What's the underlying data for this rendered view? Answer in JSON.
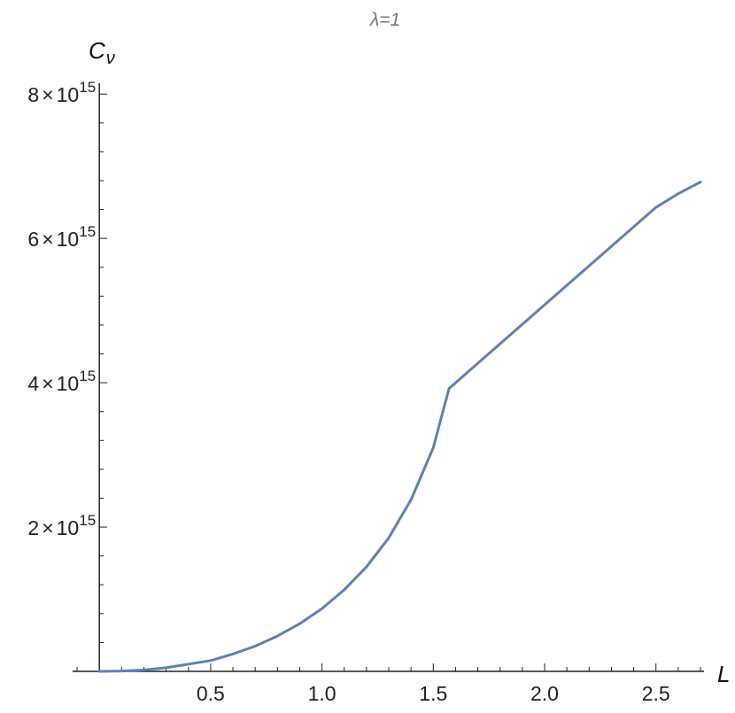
{
  "chart_data": {
    "type": "line",
    "title": "λ=1",
    "xlabel": "L",
    "ylabel": "Cv",
    "ylabel_main": "C",
    "ylabel_sub": "ν",
    "xlim": [
      -0.12,
      2.7
    ],
    "ylim": [
      0,
      8150000000000000.0
    ],
    "x_ticks": [
      {
        "value": 0.5,
        "label": "0.5"
      },
      {
        "value": 1.0,
        "label": "1.0"
      },
      {
        "value": 1.5,
        "label": "1.5"
      },
      {
        "value": 2.0,
        "label": "2.0"
      },
      {
        "value": 2.5,
        "label": "2.5"
      }
    ],
    "y_ticks": [
      {
        "value": 2000000000000000.0,
        "mantissa": "2",
        "times": "×",
        "base": "10",
        "exp": "15"
      },
      {
        "value": 4000000000000000.0,
        "mantissa": "4",
        "times": "×",
        "base": "10",
        "exp": "15"
      },
      {
        "value": 6000000000000000.0,
        "mantissa": "6",
        "times": "×",
        "base": "10",
        "exp": "15"
      },
      {
        "value": 8000000000000000.0,
        "mantissa": "8",
        "times": "×",
        "base": "10",
        "exp": "15"
      }
    ],
    "series": [
      {
        "color": "#5e81b5",
        "x": [
          0.0,
          0.1,
          0.2,
          0.3,
          0.4,
          0.5,
          0.6,
          0.7,
          0.8,
          0.9,
          1.0,
          1.1,
          1.2,
          1.3,
          1.4,
          1.5,
          1.571,
          1.7,
          1.8,
          1.9,
          2.0,
          2.1,
          2.2,
          2.3,
          2.4,
          2.5,
          2.6,
          2.7
        ],
        "y": [
          0,
          5000000000000.0,
          20000000000000.0,
          50000000000000.0,
          100000000000000.0,
          150000000000000.0,
          240000000000000.0,
          350000000000000.0,
          490000000000000.0,
          660000000000000.0,
          870000000000000.0,
          1130000000000000.0,
          1450000000000000.0,
          1850000000000000.0,
          2380000000000000.0,
          3100000000000000.0,
          3920000000000000.0,
          4270000000000000.0,
          4540000000000000.0,
          4810000000000000.0,
          5080000000000000.0,
          5350000000000000.0,
          5620000000000000.0,
          5890000000000000.0,
          6160000000000000.0,
          6430000000000000.0,
          6620000000000000.0,
          6780000000000000.0
        ]
      }
    ]
  }
}
